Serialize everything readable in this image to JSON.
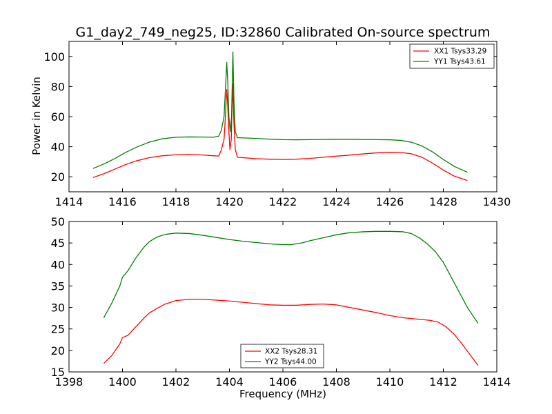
{
  "chart_data": [
    {
      "type": "line",
      "title": "G1_day2_749_neg25, ID:32860 Calibrated On-source spectrum",
      "xlabel": "",
      "ylabel": "Power in Kelvin",
      "xlim": [
        1414,
        1430
      ],
      "ylim": [
        10,
        110
      ],
      "xticks": [
        1414,
        1416,
        1418,
        1420,
        1422,
        1424,
        1426,
        1428,
        1430
      ],
      "yticks": [
        20,
        40,
        60,
        80,
        100
      ],
      "legend_position": "top-right",
      "grid": false,
      "series": [
        {
          "name": "XX1 Tsys33.29",
          "color": "#ff0000",
          "points": [
            [
              1414.9,
              19.5
            ],
            [
              1415.3,
              22.0
            ],
            [
              1415.7,
              25.0
            ],
            [
              1416.1,
              28.0
            ],
            [
              1416.5,
              30.5
            ],
            [
              1417.0,
              32.7
            ],
            [
              1417.5,
              34.0
            ],
            [
              1418.0,
              34.6
            ],
            [
              1418.5,
              34.8
            ],
            [
              1419.0,
              34.5
            ],
            [
              1419.4,
              34.0
            ],
            [
              1419.6,
              33.8
            ],
            [
              1419.7,
              38.0
            ],
            [
              1419.8,
              45.0
            ],
            [
              1419.85,
              60.0
            ],
            [
              1419.9,
              78.0
            ],
            [
              1419.93,
              70.0
            ],
            [
              1419.98,
              50.0
            ],
            [
              1420.02,
              38.0
            ],
            [
              1420.07,
              45.0
            ],
            [
              1420.12,
              82.0
            ],
            [
              1420.17,
              55.0
            ],
            [
              1420.22,
              38.0
            ],
            [
              1420.3,
              33.0
            ],
            [
              1421.0,
              32.0
            ],
            [
              1421.5,
              31.7
            ],
            [
              1422.0,
              31.5
            ],
            [
              1422.5,
              31.7
            ],
            [
              1423.0,
              32.2
            ],
            [
              1423.5,
              33.0
            ],
            [
              1424.0,
              33.7
            ],
            [
              1424.5,
              34.4
            ],
            [
              1425.0,
              35.2
            ],
            [
              1425.5,
              35.9
            ],
            [
              1426.0,
              36.3
            ],
            [
              1426.4,
              36.2
            ],
            [
              1426.8,
              35.3
            ],
            [
              1427.2,
              33.0
            ],
            [
              1427.6,
              29.0
            ],
            [
              1428.0,
              24.5
            ],
            [
              1428.4,
              20.5
            ],
            [
              1428.9,
              17.5
            ]
          ]
        },
        {
          "name": "YY1 Tsys43.61",
          "color": "#008000",
          "points": [
            [
              1414.9,
              25.5
            ],
            [
              1415.3,
              28.5
            ],
            [
              1415.7,
              32.0
            ],
            [
              1416.1,
              36.0
            ],
            [
              1416.5,
              39.5
            ],
            [
              1417.0,
              43.0
            ],
            [
              1417.5,
              45.3
            ],
            [
              1418.0,
              46.3
            ],
            [
              1418.5,
              46.5
            ],
            [
              1419.0,
              46.4
            ],
            [
              1419.4,
              46.3
            ],
            [
              1419.6,
              47.0
            ],
            [
              1419.7,
              51.0
            ],
            [
              1419.8,
              60.0
            ],
            [
              1419.85,
              78.0
            ],
            [
              1419.9,
              96.0
            ],
            [
              1419.94,
              82.0
            ],
            [
              1419.98,
              60.0
            ],
            [
              1420.03,
              50.0
            ],
            [
              1420.08,
              60.0
            ],
            [
              1420.13,
              103.0
            ],
            [
              1420.17,
              70.0
            ],
            [
              1420.22,
              50.0
            ],
            [
              1420.3,
              46.0
            ],
            [
              1421.0,
              45.5
            ],
            [
              1421.5,
              45.0
            ],
            [
              1422.0,
              44.7
            ],
            [
              1422.5,
              44.6
            ],
            [
              1423.0,
              44.7
            ],
            [
              1423.5,
              44.8
            ],
            [
              1424.0,
              44.9
            ],
            [
              1424.5,
              44.9
            ],
            [
              1425.0,
              44.8
            ],
            [
              1425.5,
              44.7
            ],
            [
              1426.0,
              44.6
            ],
            [
              1426.4,
              44.2
            ],
            [
              1426.8,
              43.0
            ],
            [
              1427.2,
              40.5
            ],
            [
              1427.6,
              36.5
            ],
            [
              1428.0,
              31.5
            ],
            [
              1428.4,
              27.0
            ],
            [
              1428.9,
              23.0
            ]
          ]
        }
      ]
    },
    {
      "type": "line",
      "title": "",
      "xlabel": "Frequency (MHz)",
      "ylabel": "",
      "xlim": [
        1398,
        1414
      ],
      "ylim": [
        15,
        50
      ],
      "xticks": [
        1398,
        1400,
        1402,
        1404,
        1406,
        1408,
        1410,
        1412,
        1414
      ],
      "yticks": [
        15,
        20,
        25,
        30,
        35,
        40,
        45,
        50
      ],
      "legend_position": "bottom-center",
      "grid": false,
      "series": [
        {
          "name": "XX2 Tsys28.31",
          "color": "#ff0000",
          "points": [
            [
              1399.3,
              17.0
            ],
            [
              1399.6,
              18.8
            ],
            [
              1399.9,
              21.5
            ],
            [
              1400.0,
              23.0
            ],
            [
              1400.2,
              23.5
            ],
            [
              1400.5,
              25.5
            ],
            [
              1400.8,
              27.5
            ],
            [
              1401.0,
              28.7
            ],
            [
              1401.3,
              29.8
            ],
            [
              1401.6,
              30.8
            ],
            [
              1402.0,
              31.6
            ],
            [
              1402.5,
              31.9
            ],
            [
              1403.0,
              31.9
            ],
            [
              1403.5,
              31.7
            ],
            [
              1404.0,
              31.5
            ],
            [
              1404.5,
              31.2
            ],
            [
              1405.0,
              30.9
            ],
            [
              1405.5,
              30.6
            ],
            [
              1406.0,
              30.5
            ],
            [
              1406.5,
              30.5
            ],
            [
              1407.0,
              30.7
            ],
            [
              1407.5,
              30.8
            ],
            [
              1408.0,
              30.6
            ],
            [
              1408.5,
              30.0
            ],
            [
              1409.0,
              29.4
            ],
            [
              1409.5,
              28.8
            ],
            [
              1410.0,
              28.1
            ],
            [
              1410.5,
              27.6
            ],
            [
              1411.0,
              27.3
            ],
            [
              1411.5,
              27.0
            ],
            [
              1411.8,
              26.6
            ],
            [
              1412.1,
              25.5
            ],
            [
              1412.4,
              23.8
            ],
            [
              1412.7,
              21.5
            ],
            [
              1413.0,
              19.0
            ],
            [
              1413.3,
              16.5
            ]
          ]
        },
        {
          "name": "YY2 Tsys44.00",
          "color": "#008000",
          "points": [
            [
              1399.3,
              27.6
            ],
            [
              1399.6,
              31.0
            ],
            [
              1399.9,
              35.0
            ],
            [
              1400.0,
              37.0
            ],
            [
              1400.2,
              38.5
            ],
            [
              1400.5,
              41.5
            ],
            [
              1400.8,
              44.0
            ],
            [
              1401.0,
              45.3
            ],
            [
              1401.3,
              46.4
            ],
            [
              1401.6,
              47.0
            ],
            [
              1402.0,
              47.3
            ],
            [
              1402.5,
              47.2
            ],
            [
              1403.0,
              46.8
            ],
            [
              1403.5,
              46.3
            ],
            [
              1404.0,
              45.8
            ],
            [
              1404.5,
              45.4
            ],
            [
              1405.0,
              45.1
            ],
            [
              1405.5,
              44.8
            ],
            [
              1406.0,
              44.6
            ],
            [
              1406.3,
              44.6
            ],
            [
              1406.7,
              45.0
            ],
            [
              1407.0,
              45.5
            ],
            [
              1407.5,
              46.2
            ],
            [
              1408.0,
              46.9
            ],
            [
              1408.5,
              47.4
            ],
            [
              1409.0,
              47.6
            ],
            [
              1409.5,
              47.7
            ],
            [
              1410.0,
              47.7
            ],
            [
              1410.5,
              47.6
            ],
            [
              1410.8,
              47.2
            ],
            [
              1411.1,
              46.2
            ],
            [
              1411.4,
              44.8
            ],
            [
              1411.7,
              43.0
            ],
            [
              1412.0,
              40.5
            ],
            [
              1412.3,
              37.0
            ],
            [
              1412.6,
              33.5
            ],
            [
              1412.9,
              30.0
            ],
            [
              1413.3,
              26.3
            ]
          ]
        }
      ]
    }
  ]
}
